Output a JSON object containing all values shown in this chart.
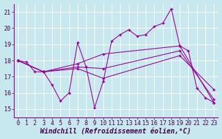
{
  "xlabel": "Windchill (Refroidissement éolien,°C)",
  "background_color": "#c8e8f0",
  "line_color": "#990099",
  "grid_color": "#b0d8e4",
  "xlim": [
    -0.5,
    23.5
  ],
  "ylim": [
    14.5,
    21.5
  ],
  "xticks": [
    0,
    1,
    2,
    3,
    4,
    5,
    6,
    7,
    8,
    9,
    10,
    11,
    12,
    13,
    14,
    15,
    16,
    17,
    18,
    19,
    20,
    21,
    22,
    23
  ],
  "yticks": [
    15,
    16,
    17,
    18,
    19,
    20,
    21
  ],
  "line1_x": [
    0,
    1,
    2,
    3,
    4,
    5,
    6,
    7,
    8,
    9,
    10,
    11,
    12,
    13,
    14,
    15,
    16,
    17,
    18,
    19,
    20,
    21,
    22,
    23
  ],
  "line1_y": [
    18.0,
    17.9,
    17.3,
    17.3,
    16.5,
    15.5,
    16.0,
    19.1,
    17.6,
    15.1,
    16.7,
    19.2,
    19.6,
    19.9,
    19.5,
    19.6,
    20.1,
    20.3,
    21.2,
    18.9,
    18.6,
    16.3,
    15.7,
    15.4
  ],
  "line2_x": [
    0,
    3,
    7,
    10,
    19,
    23
  ],
  "line2_y": [
    18.0,
    17.3,
    17.5,
    16.9,
    18.3,
    16.2
  ],
  "line3_x": [
    0,
    3,
    7,
    10,
    19,
    23
  ],
  "line3_y": [
    18.0,
    17.3,
    17.6,
    17.5,
    18.6,
    15.6
  ],
  "line4_x": [
    0,
    3,
    7,
    10,
    19,
    23
  ],
  "line4_y": [
    18.0,
    17.3,
    17.8,
    18.4,
    18.9,
    15.4
  ],
  "tick_fontsize": 6,
  "xlabel_fontsize": 7
}
